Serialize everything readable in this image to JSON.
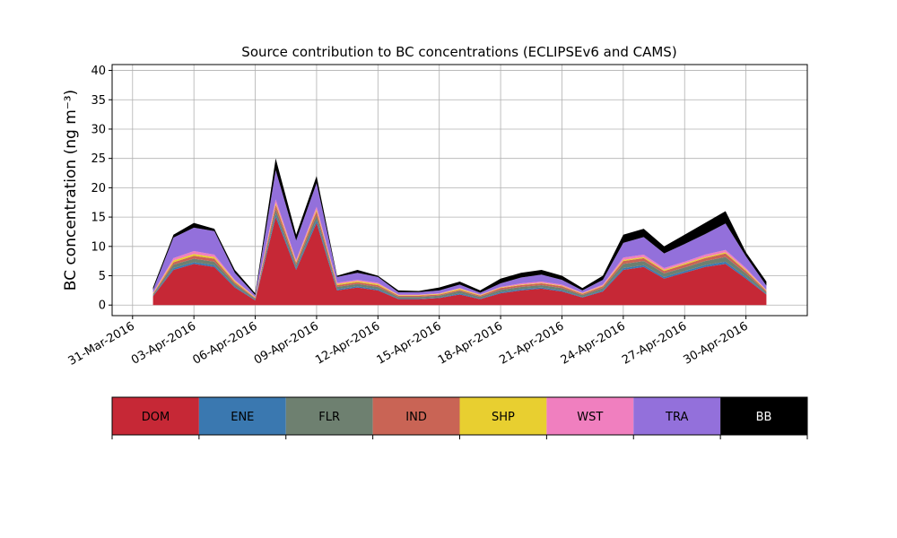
{
  "chart_data": {
    "type": "stacked_area",
    "title": "Source contribution to BC concentrations (ECLIPSEv6 and CAMS)",
    "y_label": "BC concentration (ng m⁻³)",
    "x": [
      "2016-04-01",
      "2016-04-02",
      "2016-04-03",
      "2016-04-04",
      "2016-04-05",
      "2016-04-06",
      "2016-04-07",
      "2016-04-08",
      "2016-04-09",
      "2016-04-10",
      "2016-04-11",
      "2016-04-12",
      "2016-04-13",
      "2016-04-14",
      "2016-04-15",
      "2016-04-16",
      "2016-04-17",
      "2016-04-18",
      "2016-04-19",
      "2016-04-20",
      "2016-04-21",
      "2016-04-22",
      "2016-04-23",
      "2016-04-24",
      "2016-04-25",
      "2016-04-26",
      "2016-04-27",
      "2016-04-28",
      "2016-04-29",
      "2016-04-30",
      "2016-05-01"
    ],
    "series": [
      {
        "name": "DOM",
        "color": "#c62836",
        "values": [
          1.5,
          6,
          7,
          6.5,
          3,
          0.8,
          15,
          6,
          14,
          2.5,
          3,
          2.5,
          1,
          1,
          1.2,
          1.8,
          1,
          2,
          2.5,
          2.8,
          2.3,
          1.3,
          2.3,
          6,
          6.5,
          4.5,
          5.5,
          6.5,
          7,
          4.5,
          1.8
        ]
      },
      {
        "name": "ENE",
        "color": "#3a78b0",
        "values": [
          0.1,
          0.3,
          0.3,
          0.3,
          0.2,
          0.1,
          0.5,
          0.3,
          0.5,
          0.2,
          0.2,
          0.2,
          0.1,
          0.1,
          0.1,
          0.2,
          0.1,
          0.2,
          0.2,
          0.2,
          0.2,
          0.1,
          0.2,
          0.3,
          0.3,
          0.3,
          0.3,
          0.3,
          0.4,
          0.3,
          0.1
        ]
      },
      {
        "name": "FLR",
        "color": "#6e8070",
        "values": [
          0.2,
          0.6,
          0.6,
          0.6,
          0.4,
          0.2,
          0.8,
          0.5,
          0.8,
          0.4,
          0.4,
          0.4,
          0.3,
          0.3,
          0.3,
          0.4,
          0.3,
          0.4,
          0.4,
          0.4,
          0.4,
          0.3,
          0.4,
          0.7,
          0.7,
          0.6,
          0.6,
          0.7,
          0.8,
          0.6,
          0.3
        ]
      },
      {
        "name": "IND",
        "color": "#c96455",
        "values": [
          0.1,
          0.4,
          0.5,
          0.5,
          0.3,
          0.1,
          0.8,
          0.4,
          0.7,
          0.3,
          0.3,
          0.3,
          0.2,
          0.2,
          0.2,
          0.2,
          0.2,
          0.3,
          0.3,
          0.3,
          0.3,
          0.2,
          0.3,
          0.5,
          0.5,
          0.4,
          0.5,
          0.5,
          0.6,
          0.4,
          0.2
        ]
      },
      {
        "name": "SHP",
        "color": "#e8cf30",
        "values": [
          0.1,
          0.3,
          0.3,
          0.3,
          0.2,
          0.1,
          0.3,
          0.2,
          0.3,
          0.2,
          0.2,
          0.2,
          0.1,
          0.1,
          0.1,
          0.2,
          0.1,
          0.1,
          0.1,
          0.1,
          0.1,
          0.1,
          0.1,
          0.2,
          0.2,
          0.2,
          0.2,
          0.2,
          0.2,
          0.2,
          0.1
        ]
      },
      {
        "name": "WST",
        "color": "#f07fbf",
        "values": [
          0.1,
          0.4,
          0.5,
          0.4,
          0.2,
          0.1,
          0.6,
          0.3,
          0.5,
          0.2,
          0.2,
          0.2,
          0.1,
          0.1,
          0.1,
          0.1,
          0.1,
          0.1,
          0.2,
          0.2,
          0.2,
          0.1,
          0.2,
          0.4,
          0.4,
          0.3,
          0.3,
          0.4,
          0.4,
          0.3,
          0.1
        ]
      },
      {
        "name": "TRA",
        "color": "#9370db",
        "values": [
          0.5,
          3.5,
          4,
          4,
          1.2,
          0.3,
          5,
          3.3,
          4,
          1,
          1.2,
          1,
          0.4,
          0.4,
          0.5,
          0.6,
          0.3,
          0.6,
          1,
          1.2,
          0.8,
          0.4,
          0.8,
          2.5,
          3,
          2.5,
          3,
          3.5,
          4.5,
          2,
          0.7
        ]
      },
      {
        "name": "BB",
        "color": "#000000",
        "values": [
          0.4,
          0.5,
          0.8,
          0.4,
          0.5,
          0.3,
          2,
          1,
          1.2,
          0.2,
          0.5,
          0.2,
          0.3,
          0.2,
          0.5,
          0.5,
          0.4,
          0.8,
          0.8,
          0.8,
          0.7,
          0.4,
          0.7,
          1.4,
          1.4,
          1.2,
          1.6,
          1.9,
          2.1,
          0.7,
          0.7
        ]
      }
    ],
    "xlim": [
      "2016-03-30",
      "2016-05-03"
    ],
    "xticks": [
      {
        "value": "2016-03-31",
        "label": "31-Mar-2016"
      },
      {
        "value": "2016-04-03",
        "label": "03-Apr-2016"
      },
      {
        "value": "2016-04-06",
        "label": "06-Apr-2016"
      },
      {
        "value": "2016-04-09",
        "label": "09-Apr-2016"
      },
      {
        "value": "2016-04-12",
        "label": "12-Apr-2016"
      },
      {
        "value": "2016-04-15",
        "label": "15-Apr-2016"
      },
      {
        "value": "2016-04-18",
        "label": "18-Apr-2016"
      },
      {
        "value": "2016-04-21",
        "label": "21-Apr-2016"
      },
      {
        "value": "2016-04-24",
        "label": "24-Apr-2016"
      },
      {
        "value": "2016-04-27",
        "label": "27-Apr-2016"
      },
      {
        "value": "2016-04-30",
        "label": "30-Apr-2016"
      }
    ],
    "ylim": [
      -1.8,
      41
    ],
    "yticks": [
      0,
      5,
      10,
      15,
      20,
      25,
      30,
      35,
      40
    ],
    "grid": true
  }
}
